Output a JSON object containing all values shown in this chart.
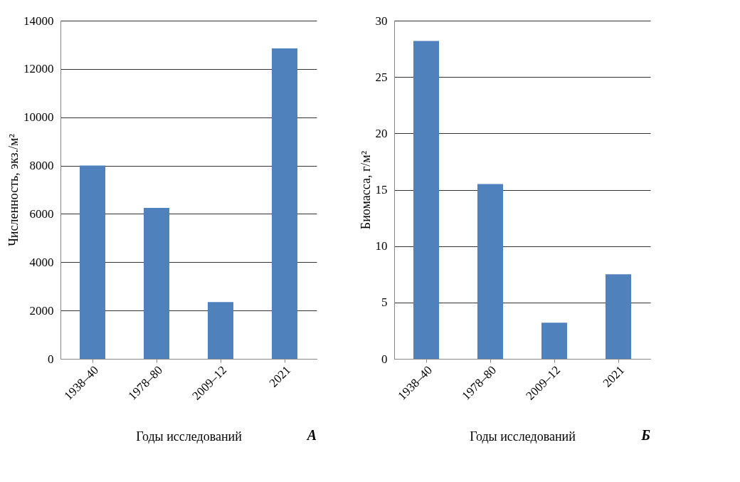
{
  "chart_data": [
    {
      "type": "bar",
      "categories": [
        "1938–40",
        "1978–80",
        "2009–12",
        "2021"
      ],
      "values": [
        8000,
        6250,
        2350,
        12850
      ],
      "color": "#4f81bd",
      "xlabel": "Годы исследований",
      "ylabel": "Численность,  экз./м²",
      "ylim": [
        0,
        14000
      ],
      "yticks": [
        0,
        2000,
        4000,
        6000,
        8000,
        10000,
        12000,
        14000
      ],
      "grid": "y",
      "annotations": [
        "А"
      ]
    },
    {
      "type": "bar",
      "categories": [
        "1938–40",
        "1978–80",
        "2009–12",
        "2021"
      ],
      "values": [
        28.2,
        15.5,
        3.2,
        7.5
      ],
      "color": "#4f81bd",
      "xlabel": "Годы исследований",
      "ylabel": "Биомасса, г/м²",
      "ylim": [
        0,
        30
      ],
      "yticks": [
        0,
        5,
        10,
        15,
        20,
        25,
        30
      ],
      "grid": "y",
      "annotations": [
        "Б"
      ]
    }
  ]
}
